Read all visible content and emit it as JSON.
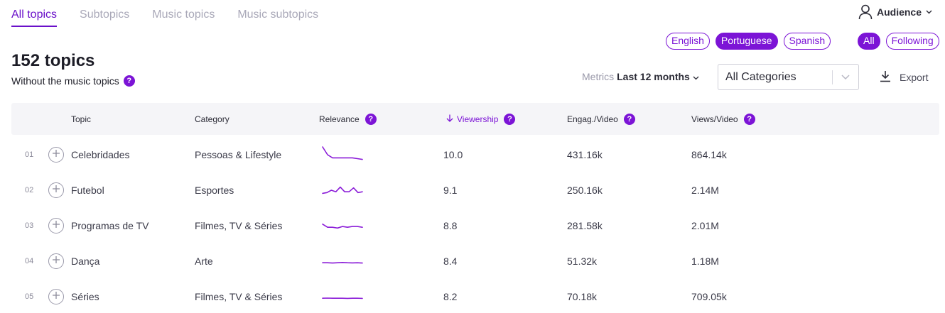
{
  "tabs": [
    {
      "label": "All topics",
      "active": true
    },
    {
      "label": "Subtopics",
      "active": false
    },
    {
      "label": "Music topics",
      "active": false
    },
    {
      "label": "Music subtopics",
      "active": false
    }
  ],
  "audience": {
    "label": "Audience"
  },
  "languages": [
    {
      "label": "English",
      "selected": false
    },
    {
      "label": "Portuguese",
      "selected": true
    },
    {
      "label": "Spanish",
      "selected": false
    }
  ],
  "scope": [
    {
      "label": "All",
      "selected": true
    },
    {
      "label": "Following",
      "selected": false
    }
  ],
  "header": {
    "title": "152 topics",
    "subtitle": "Without the music topics"
  },
  "metrics": {
    "label": "Metrics",
    "period": "Last 12 months"
  },
  "category_select": {
    "value": "All Categories"
  },
  "export": {
    "label": "Export"
  },
  "table": {
    "columns": {
      "topic": "Topic",
      "category": "Category",
      "relevance": "Relevance",
      "viewership": "Viewership",
      "engagement": "Engag./Video",
      "views": "Views/Video"
    },
    "rows": [
      {
        "rank": "01",
        "topic": "Celebridades",
        "category": "Pessoas & Lifestyle",
        "viewership": "10.0",
        "engagement": "431.16k",
        "views": "864.14k",
        "trend": [
          10,
          5,
          3,
          3,
          3,
          3,
          3,
          2.5,
          2
        ]
      },
      {
        "rank": "02",
        "topic": "Futebol",
        "category": "Esportes",
        "viewership": "9.1",
        "engagement": "250.16k",
        "views": "2.14M",
        "trend": [
          3,
          3.5,
          5,
          4,
          7,
          4,
          4,
          6.5,
          3.5,
          4
        ]
      },
      {
        "rank": "03",
        "topic": "Programas de TV",
        "category": "Filmes, TV & Séries",
        "viewership": "8.8",
        "engagement": "281.58k",
        "views": "2.01M",
        "trend": [
          6,
          4,
          4,
          3.5,
          4.5,
          4,
          4.5,
          4.5,
          4
        ]
      },
      {
        "rank": "04",
        "topic": "Dança",
        "category": "Arte",
        "viewership": "8.4",
        "engagement": "51.32k",
        "views": "1.18M",
        "trend": [
          4,
          4,
          3.8,
          4,
          4.2,
          4,
          3.9,
          4,
          3.8
        ]
      },
      {
        "rank": "05",
        "topic": "Séries",
        "category": "Filmes, TV & Séries",
        "viewership": "8.2",
        "engagement": "70.18k",
        "views": "709.05k",
        "trend": [
          4,
          4.1,
          4,
          4,
          4,
          3.9,
          4,
          4,
          3.9
        ]
      }
    ]
  },
  "colors": {
    "accent": "#7c14d6",
    "tab_active": "#6a10c9",
    "header_bg": "#f5f5f8"
  },
  "icons": [
    "user-icon",
    "chevron-down-icon",
    "help-icon",
    "download-icon",
    "plus-icon",
    "arrow-down-icon"
  ]
}
